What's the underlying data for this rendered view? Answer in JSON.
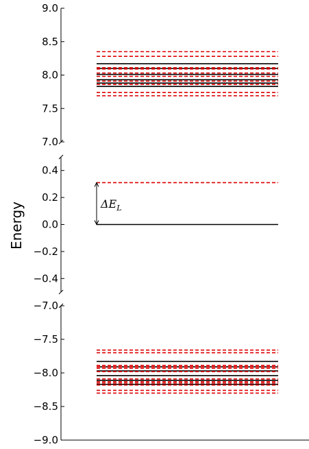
{
  "chart_data": {
    "type": "line",
    "ylabel": "Energy",
    "grid": false,
    "legend": "none",
    "colors": {
      "solid": "#000000",
      "dashed": "#dd0000",
      "axis": "#000000"
    },
    "panels": [
      {
        "name": "upper",
        "ylim": [
          7.0,
          9.0
        ],
        "ticks": [
          "9.0",
          "8.5",
          "8.0",
          "7.5",
          "7.0"
        ],
        "tick_values": [
          9.0,
          8.5,
          8.0,
          7.5,
          7.0
        ],
        "series": [
          {
            "style": "solid",
            "levels": [
              7.83,
              7.88,
              7.93,
              8.01,
              8.1,
              8.17
            ]
          },
          {
            "style": "dashed",
            "levels": [
              7.69,
              7.74,
              7.86,
              7.91,
              7.98,
              8.03,
              8.09,
              8.11,
              8.28,
              8.35
            ]
          }
        ]
      },
      {
        "name": "middle",
        "ylim": [
          -0.5,
          0.5
        ],
        "ticks": [
          "0.4",
          "0.2",
          "0.0",
          "−0.2",
          "−0.4"
        ],
        "tick_values": [
          0.4,
          0.2,
          0.0,
          -0.2,
          -0.4
        ],
        "series": [
          {
            "style": "solid",
            "levels": [
              0.0
            ]
          },
          {
            "style": "dashed",
            "levels": [
              0.31
            ]
          }
        ],
        "annotation": {
          "text": "ΔE",
          "subscript": "L",
          "from": 0.0,
          "to": 0.31
        }
      },
      {
        "name": "lower",
        "ylim": [
          -9.0,
          -7.0
        ],
        "ticks": [
          "−7.0",
          "−7.5",
          "−8.0",
          "−8.5",
          "−9.0"
        ],
        "tick_values": [
          -7.0,
          -7.5,
          -8.0,
          -8.5,
          -9.0
        ],
        "series": [
          {
            "style": "solid",
            "levels": [
              -7.83,
              -7.91,
              -7.97,
              -8.04,
              -8.11,
              -8.17
            ]
          },
          {
            "style": "dashed",
            "levels": [
              -7.66,
              -7.7,
              -7.89,
              -7.91,
              -7.93,
              -7.98,
              -8.09,
              -8.13,
              -8.15,
              -8.18,
              -8.26,
              -8.3
            ]
          }
        ]
      }
    ]
  }
}
